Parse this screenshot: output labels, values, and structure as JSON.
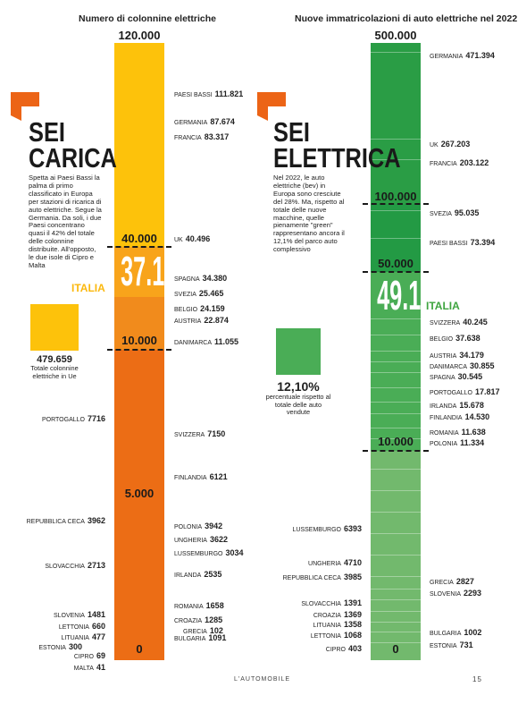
{
  "colors": {
    "yellow": "#fdc20b",
    "lightOrange": "#f8a41b",
    "orange": "#f18b1c",
    "darkOrange": "#ec6d15",
    "darkGreen": "#2a9d45",
    "green": "#4aad56",
    "lightGreen": "#72b96d",
    "accentOrange": "#ec6416",
    "italiaLeft": "#fbb80e",
    "italiaRight": "#3ea43f"
  },
  "chart_data": [
    {
      "type": "bar",
      "title": "Numero di colonnine elettriche",
      "scale_ticks": [
        "120.000",
        "40.000",
        "10.000",
        "5.000",
        "0"
      ],
      "highlight": {
        "label": "ITALIA",
        "value": 37186,
        "display": "37.186"
      },
      "categories": [
        "Paesi Bassi",
        "Germania",
        "Francia",
        "UK",
        "Spagna",
        "Svezia",
        "Belgio",
        "Austria",
        "Danimarca",
        "Portogallo",
        "Svizzera",
        "Finlandia",
        "Repubblica Ceca",
        "Polonia",
        "Ungheria",
        "Lussemburgo",
        "Slovacchia",
        "Irlanda",
        "Romania",
        "Slovenia",
        "Croazia",
        "Lettonia",
        "Grecia",
        "Lituania",
        "Bulgaria",
        "Estonia",
        "Cipro",
        "Malta"
      ],
      "values": [
        111821,
        87674,
        83317,
        40496,
        34380,
        25465,
        24159,
        22874,
        11055,
        7716,
        7150,
        6121,
        3962,
        3942,
        3622,
        3034,
        2713,
        2535,
        1658,
        1481,
        1285,
        660,
        102,
        477,
        1091,
        300,
        69,
        41
      ]
    },
    {
      "type": "bar",
      "title": "Nuove immatricolazioni di auto elettriche nel 2022",
      "scale_ticks": [
        "500.000",
        "100.000",
        "50.000",
        "10.000",
        "0"
      ],
      "highlight": {
        "label": "ITALIA",
        "value": 49179,
        "display": "49.179"
      },
      "categories": [
        "Germania",
        "UK",
        "Francia",
        "Svezia",
        "Paesi Bassi",
        "Svizzera",
        "Belgio",
        "Austria",
        "Danimarca",
        "Spagna",
        "Portogallo",
        "Irlanda",
        "Finlandia",
        "Romania",
        "Polonia",
        "Lussemburgo",
        "Ungheria",
        "Repubblica Ceca",
        "Grecia",
        "Slovenia",
        "Slovacchia",
        "Croazia",
        "Lituania",
        "Lettonia",
        "Bulgaria",
        "Cipro",
        "Estonia"
      ],
      "values": [
        471394,
        267203,
        203122,
        95035,
        73394,
        40245,
        37638,
        34179,
        30855,
        30545,
        17817,
        15678,
        14530,
        11638,
        11334,
        6393,
        4710,
        3985,
        2827,
        2293,
        1391,
        1369,
        1358,
        1068,
        1002,
        403,
        731
      ]
    }
  ],
  "left": {
    "header": "Numero di colonnine elettriche",
    "title_l1": "SEI",
    "title_l2": "CARICA",
    "intro": "Spetta ai Paesi Bassi la palma di primo classificato in Europa per stazioni di ricarica di auto elettriche. Segue la Germania. Da soli, i due Paesi concentrano quasi il 42% del totale delle colonnine distribuite. All'opposto, le due isole di Cipro e Malta",
    "ticks": {
      "t120": "120.000",
      "t40": "40.000",
      "t10": "10.000",
      "t5": "5.000",
      "t0": "0"
    },
    "italia": "ITALIA",
    "italia_value": "37.186",
    "note_num": "479.659",
    "note_text": "Totale colonnine elettriche in Ue",
    "labels": [
      {
        "name": "PAESI BASSI",
        "value": "111.821"
      },
      {
        "name": "GERMANIA",
        "value": "87.674"
      },
      {
        "name": "FRANCIA",
        "value": "83.317"
      },
      {
        "name": "UK",
        "value": "40.496"
      },
      {
        "name": "SPAGNA",
        "value": "34.380"
      },
      {
        "name": "SVEZIA",
        "value": "25.465"
      },
      {
        "name": "BELGIO",
        "value": "24.159"
      },
      {
        "name": "AUSTRIA",
        "value": "22.874"
      },
      {
        "name": "DANIMARCA",
        "value": "11.055"
      },
      {
        "name": "SVIZZERA",
        "value": "7150"
      },
      {
        "name": "FINLANDIA",
        "value": "6121"
      },
      {
        "name": "POLONIA",
        "value": "3942"
      },
      {
        "name": "UNGHERIA",
        "value": "3622"
      },
      {
        "name": "LUSSEMBURGO",
        "value": "3034"
      },
      {
        "name": "IRLANDA",
        "value": "2535"
      },
      {
        "name": "ROMANIA",
        "value": "1658"
      },
      {
        "name": "CROAZIA",
        "value": "1285"
      },
      {
        "name": "GRECIA",
        "value": "102"
      },
      {
        "name": "BULGARIA",
        "value": "1091"
      },
      {
        "name": "PORTOGALLO",
        "value": "7716"
      },
      {
        "name": "REPUBBLICA CECA",
        "value": "3962"
      },
      {
        "name": "SLOVACCHIA",
        "value": "2713"
      },
      {
        "name": "SLOVENIA",
        "value": "1481"
      },
      {
        "name": "LETTONIA",
        "value": "660"
      },
      {
        "name": "LITUANIA",
        "value": "477"
      },
      {
        "name": "ESTONIA",
        "value": "300"
      },
      {
        "name": "CIPRO",
        "value": "69"
      },
      {
        "name": "MALTA",
        "value": "41"
      }
    ]
  },
  "right": {
    "header": "Nuove immatricolazioni di auto elettriche nel 2022",
    "title_l1": "SEI",
    "title_l2": "ELETTRICA",
    "intro": "Nel 2022, le auto elettriche (bev) in Europa sono cresciute del 28%. Ma, rispetto al totale delle nuove macchine, quelle pienamente \"green\" rappresentano ancora il 12,1% del parco auto complessivo",
    "ticks": {
      "t500": "500.000",
      "t100": "100.000",
      "t50": "50.000",
      "t10": "10.000",
      "t0": "0"
    },
    "italia": "ITALIA",
    "italia_value": "49.179",
    "note_num": "12,10%",
    "note_text": "percentuale rispetto al totale delle auto vendute",
    "labels": [
      {
        "name": "GERMANIA",
        "value": "471.394"
      },
      {
        "name": "UK",
        "value": "267.203"
      },
      {
        "name": "FRANCIA",
        "value": "203.122"
      },
      {
        "name": "SVEZIA",
        "value": "95.035"
      },
      {
        "name": "PAESI BASSI",
        "value": "73.394"
      },
      {
        "name": "SVIZZERA",
        "value": "40.245"
      },
      {
        "name": "BELGIO",
        "value": "37.638"
      },
      {
        "name": "AUSTRIA",
        "value": "34.179"
      },
      {
        "name": "DANIMARCA",
        "value": "30.855"
      },
      {
        "name": "SPAGNA",
        "value": "30.545"
      },
      {
        "name": "PORTOGALLO",
        "value": "17.817"
      },
      {
        "name": "IRLANDA",
        "value": "15.678"
      },
      {
        "name": "FINLANDIA",
        "value": "14.530"
      },
      {
        "name": "ROMANIA",
        "value": "11.638"
      },
      {
        "name": "POLONIA",
        "value": "11.334"
      },
      {
        "name": "GRECIA",
        "value": "2827"
      },
      {
        "name": "SLOVENIA",
        "value": "2293"
      },
      {
        "name": "BULGARIA",
        "value": "1002"
      },
      {
        "name": "ESTONIA",
        "value": "731"
      },
      {
        "name": "LUSSEMBURGO",
        "value": "6393"
      },
      {
        "name": "UNGHERIA",
        "value": "4710"
      },
      {
        "name": "REPUBBLICA CECA",
        "value": "3985"
      },
      {
        "name": "SLOVACCHIA",
        "value": "1391"
      },
      {
        "name": "CROAZIA",
        "value": "1369"
      },
      {
        "name": "LITUANIA",
        "value": "1358"
      },
      {
        "name": "LETTONIA",
        "value": "1068"
      },
      {
        "name": "CIPRO",
        "value": "403"
      }
    ]
  },
  "footer": {
    "brand": "L'AUTOMOBILE",
    "page": "15"
  }
}
